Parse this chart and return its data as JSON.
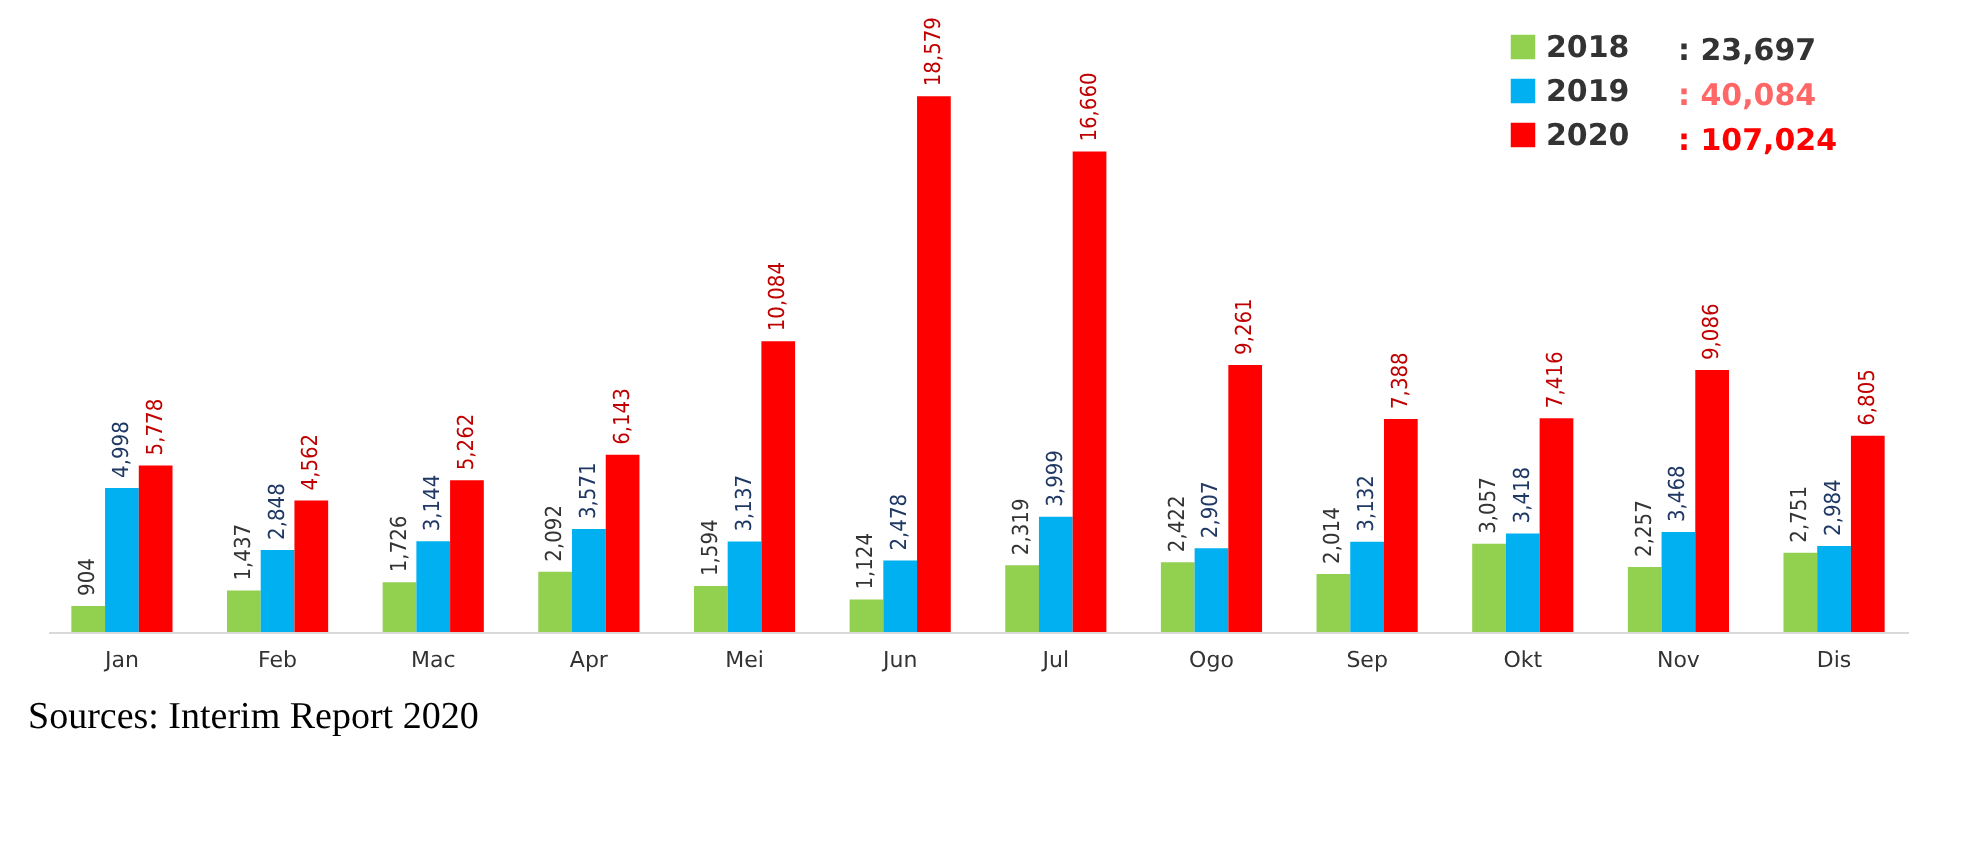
{
  "chart_data": {
    "type": "bar",
    "categories": [
      "Jan",
      "Feb",
      "Mac",
      "Apr",
      "Mei",
      "Jun",
      "Jul",
      "Ogo",
      "Sep",
      "Okt",
      "Nov",
      "Dis"
    ],
    "series": [
      {
        "name": "2018",
        "color": "#92d050",
        "values": [
          904,
          1437,
          1726,
          2092,
          1594,
          1124,
          2319,
          2422,
          2014,
          3057,
          2257,
          2751
        ],
        "value_labels": [
          "904",
          "1,437",
          "1,726",
          "2,092",
          "1,594",
          "1,124",
          "2,319",
          "2,422",
          "2,014",
          "3,057",
          "2,257",
          "2,751"
        ]
      },
      {
        "name": "2019",
        "color": "#00b0f0",
        "values": [
          4998,
          2848,
          3144,
          3571,
          3137,
          2478,
          3999,
          2907,
          3132,
          3418,
          3468,
          2984
        ],
        "value_labels": [
          "4,998",
          "2,848",
          "3,144",
          "3,571",
          "3,137",
          "2,478",
          "3,999",
          "2,907",
          "3,132",
          "3,418",
          "3,468",
          "2,984"
        ]
      },
      {
        "name": "2020",
        "color": "#ff0000",
        "values": [
          5778,
          4562,
          5262,
          6143,
          10084,
          18579,
          16660,
          9261,
          7388,
          7416,
          9086,
          6805
        ],
        "value_labels": [
          "5,778",
          "4,562",
          "5,262",
          "6,143",
          "10,084",
          "18,579",
          "16,660",
          "9,261",
          "7,388",
          "7,416",
          "9,086",
          "6,805"
        ]
      }
    ],
    "legend": "top right",
    "annotations": [
      ": 23,697",
      ": 40,084",
      ": 107,024",
      "Sources: Interim Report 2020"
    ]
  }
}
